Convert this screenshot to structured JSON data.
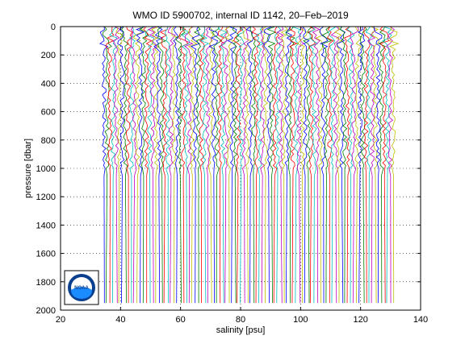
{
  "chart_data": {
    "type": "line",
    "title": "WMO ID 5900702, internal ID 1142, 20–Feb–2019",
    "xlabel": "salinity [psu]",
    "ylabel": "pressure [dbar]",
    "xlim": [
      20,
      140
    ],
    "ylim": [
      0,
      2000
    ],
    "y_reversed": true,
    "xticks": [
      "20",
      "40",
      "60",
      "80",
      "100",
      "120",
      "140"
    ],
    "yticks": [
      "0",
      "200",
      "400",
      "600",
      "800",
      "1000",
      "1200",
      "1400",
      "1600",
      "1800",
      "2000"
    ],
    "grid": "dotted",
    "profile_offset_psu": 1,
    "profile_count": 96,
    "profile_base_salinity": 34.6,
    "profile_x_range": [
      34.5,
      131
    ],
    "deep_pressure_range": [
      1000,
      2000
    ],
    "series_colors": [
      "#0000ff",
      "#008000",
      "#ff0000",
      "#00bfbf",
      "#bf00bf",
      "#bfbf00"
    ],
    "logo": {
      "text": "NOAA",
      "icon": "noaa-logo-icon"
    }
  }
}
